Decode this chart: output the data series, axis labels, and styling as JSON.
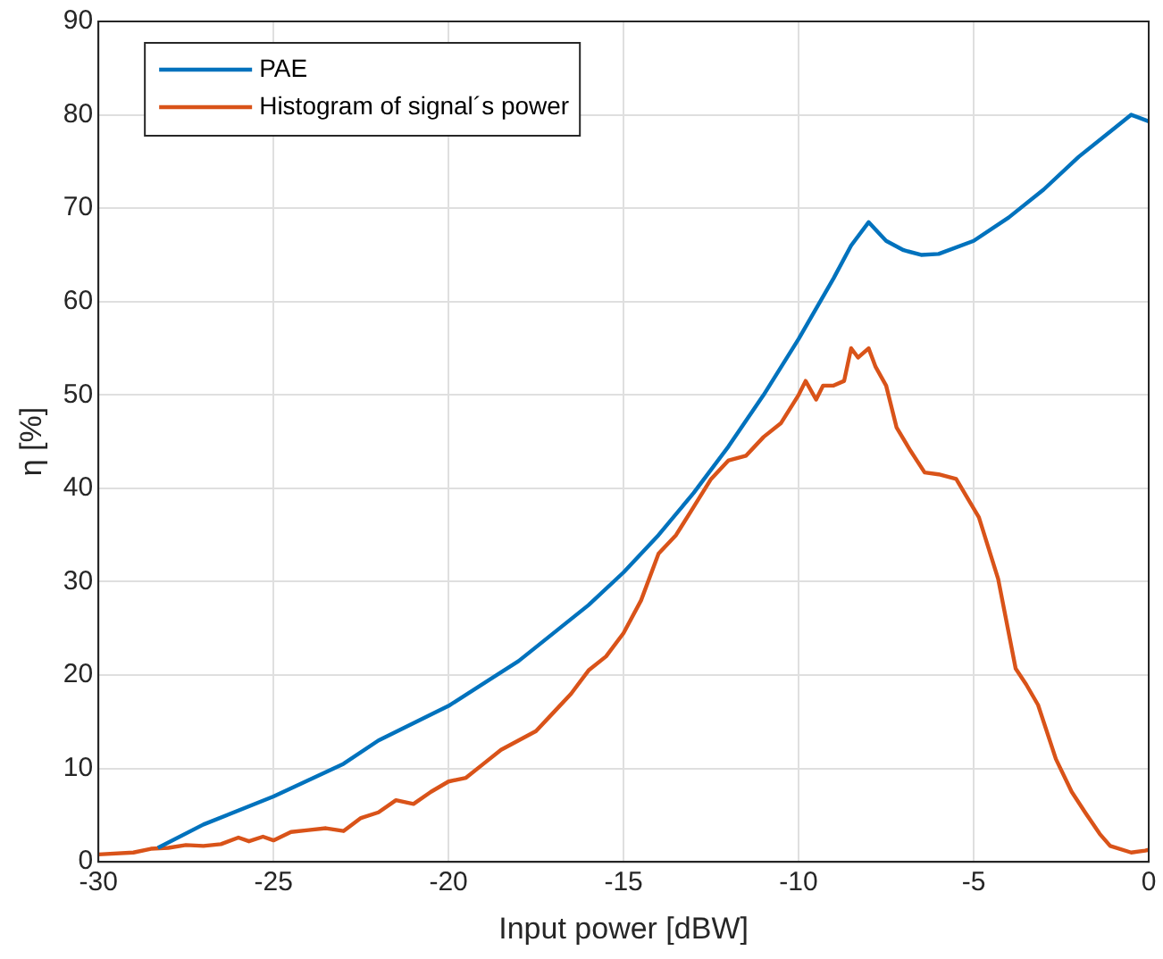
{
  "chart_data": {
    "type": "line",
    "xlabel": "Input power [dBW]",
    "ylabel": "η [%]",
    "xlim": [
      -30,
      0
    ],
    "xticks": [
      -30,
      -25,
      -20,
      -15,
      -10,
      -5,
      0
    ],
    "ylim": [
      0,
      90
    ],
    "yticks": [
      0,
      10,
      20,
      30,
      40,
      50,
      60,
      70,
      80,
      90
    ],
    "grid": true,
    "legend": "top left",
    "marker": "none",
    "line_style": "solid",
    "series": [
      {
        "name": "PAE",
        "color": "#0072bd",
        "x": [
          -28.3,
          -27,
          -25,
          -23,
          -22,
          -20,
          -18,
          -16,
          -15,
          -14,
          -13,
          -12,
          -11,
          -10,
          -9,
          -8.5,
          -8,
          -7.5,
          -7,
          -6.5,
          -6,
          -5,
          -4,
          -3,
          -2,
          -1,
          -0.5,
          0
        ],
        "values": [
          1.5,
          4,
          7,
          10.5,
          13,
          16.7,
          21.5,
          27.5,
          31,
          35,
          39.5,
          44.5,
          50,
          56,
          62.5,
          66,
          68.5,
          66.5,
          65.5,
          65,
          65.1,
          66.5,
          69,
          72,
          75.5,
          78.5,
          80,
          79.3
        ]
      },
      {
        "name": "Histogram of signal´s power",
        "color": "#d95319",
        "x": [
          -30,
          -29,
          -28.5,
          -28,
          -27.5,
          -27,
          -26.5,
          -26,
          -25.7,
          -25.3,
          -25,
          -24.5,
          -24,
          -23.5,
          -23,
          -22.5,
          -22,
          -21.5,
          -21,
          -20.5,
          -20,
          -19.5,
          -19,
          -18.5,
          -18,
          -17.5,
          -17,
          -16.5,
          -16,
          -15.5,
          -15,
          -14.5,
          -14,
          -13.5,
          -13,
          -12.5,
          -12,
          -11.5,
          -11,
          -10.5,
          -10,
          -9.8,
          -9.5,
          -9.3,
          -9,
          -8.7,
          -8.5,
          -8.3,
          -8,
          -7.8,
          -7.5,
          -7.2,
          -6.8,
          -6.4,
          -6,
          -5.5,
          -4.85,
          -4.3,
          -3.8,
          -3.5,
          -3.16,
          -2.65,
          -2.2,
          -1.8,
          -1.4,
          -1.1,
          -0.5,
          -0.1,
          0
        ],
        "values": [
          0.8,
          1,
          1.4,
          1.5,
          1.8,
          1.7,
          1.9,
          2.6,
          2.2,
          2.7,
          2.3,
          3.2,
          3.4,
          3.6,
          3.3,
          4.7,
          5.3,
          6.6,
          6.2,
          7.5,
          8.6,
          9,
          10.5,
          12,
          13,
          14,
          16,
          18,
          20.5,
          22,
          24.5,
          28,
          33,
          35,
          38,
          41,
          43,
          43.5,
          45.5,
          47,
          50,
          51.5,
          49.5,
          51,
          51,
          51.5,
          55,
          54,
          55,
          53,
          51,
          46.5,
          44,
          41.7,
          41.5,
          41,
          36.9,
          30.3,
          20.7,
          19,
          16.8,
          11,
          7.5,
          5.2,
          3,
          1.7,
          1,
          1.2,
          1.3
        ]
      }
    ]
  }
}
